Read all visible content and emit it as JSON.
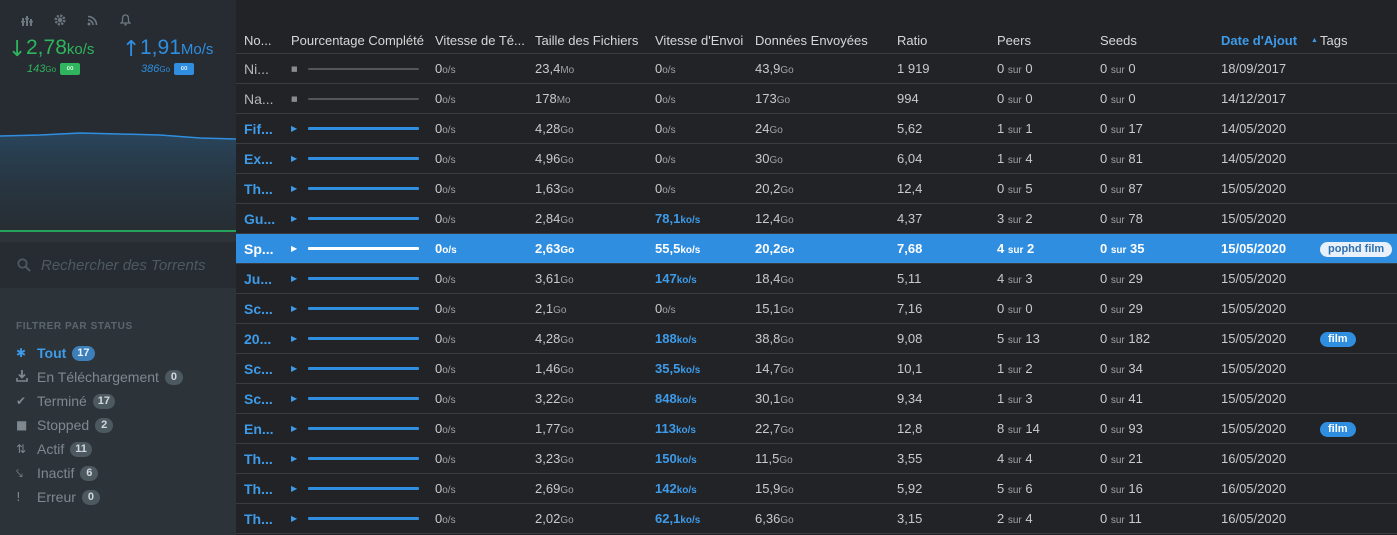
{
  "sidebar": {
    "icons": [
      "equalizer-icon",
      "gear-icon",
      "rss-icon",
      "bell-icon"
    ],
    "download": {
      "value": "2,78",
      "unit": "ko/s",
      "total": "143",
      "total_unit": "Go",
      "limit": "∞"
    },
    "upload": {
      "value": "1,91",
      "unit": "Mo/s",
      "total": "386",
      "total_unit": "Go",
      "limit": "∞"
    },
    "search_placeholder": "Rechercher des Torrents",
    "filter_title": "FILTRER PAR STATUS",
    "filters": [
      {
        "label": "Tout",
        "count": "17",
        "icon": "asterisk-icon",
        "active": true
      },
      {
        "label": "En Téléchargement",
        "count": "0",
        "icon": "download-icon"
      },
      {
        "label": "Terminé",
        "count": "17",
        "icon": "check-icon"
      },
      {
        "label": "Stopped",
        "count": "2",
        "icon": "stop-icon"
      },
      {
        "label": "Actif",
        "count": "11",
        "icon": "transfer-icon"
      },
      {
        "label": "Inactif",
        "count": "6",
        "icon": "inactive-icon"
      },
      {
        "label": "Erreur",
        "count": "0",
        "icon": "exclamation-icon"
      }
    ],
    "colors": {
      "download": "#2fb55d",
      "upload": "#2f8ee0"
    }
  },
  "table": {
    "headers": [
      "No...",
      "Pourcentage Complété",
      "Vitesse de Té...",
      "Taille des Fichiers",
      "Vitesse d'Envoi",
      "Données Envoyées",
      "Ratio",
      "Peers",
      "Seeds",
      "Date d'Ajout",
      "Tags"
    ],
    "sort_column": "Date d'Ajout",
    "sort_direction": "ascending",
    "peer_sep": "sur",
    "rows": [
      {
        "name": "Ni...",
        "status": "stopped",
        "dl": "0",
        "dl_u": "o/s",
        "size": "23,4",
        "size_u": "Mo",
        "up": "0",
        "up_u": "o/s",
        "sent": "43,9",
        "sent_u": "Go",
        "ratio": "1 919",
        "peers_a": "0",
        "peers_b": "0",
        "seeds_a": "0",
        "seeds_b": "0",
        "date": "18/09/2017",
        "tag": ""
      },
      {
        "name": "Na...",
        "status": "stopped",
        "dl": "0",
        "dl_u": "o/s",
        "size": "178",
        "size_u": "Mo",
        "up": "0",
        "up_u": "o/s",
        "sent": "173",
        "sent_u": "Go",
        "ratio": "994",
        "peers_a": "0",
        "peers_b": "0",
        "seeds_a": "0",
        "seeds_b": "0",
        "date": "14/12/2017",
        "tag": ""
      },
      {
        "name": "Fif...",
        "status": "seeding",
        "dl": "0",
        "dl_u": "o/s",
        "size": "4,28",
        "size_u": "Go",
        "up": "0",
        "up_u": "o/s",
        "sent": "24",
        "sent_u": "Go",
        "ratio": "5,62",
        "peers_a": "1",
        "peers_b": "1",
        "seeds_a": "0",
        "seeds_b": "17",
        "date": "14/05/2020",
        "tag": ""
      },
      {
        "name": "Ex...",
        "status": "seeding",
        "dl": "0",
        "dl_u": "o/s",
        "size": "4,96",
        "size_u": "Go",
        "up": "0",
        "up_u": "o/s",
        "sent": "30",
        "sent_u": "Go",
        "ratio": "6,04",
        "peers_a": "1",
        "peers_b": "4",
        "seeds_a": "0",
        "seeds_b": "81",
        "date": "14/05/2020",
        "tag": ""
      },
      {
        "name": "Th...",
        "status": "seeding",
        "dl": "0",
        "dl_u": "o/s",
        "size": "1,63",
        "size_u": "Go",
        "up": "0",
        "up_u": "o/s",
        "sent": "20,2",
        "sent_u": "Go",
        "ratio": "12,4",
        "peers_a": "0",
        "peers_b": "5",
        "seeds_a": "0",
        "seeds_b": "87",
        "date": "15/05/2020",
        "tag": ""
      },
      {
        "name": "Gu...",
        "status": "seeding",
        "dl": "0",
        "dl_u": "o/s",
        "size": "2,84",
        "size_u": "Go",
        "up": "78,1",
        "up_u": "ko/s",
        "up_active": true,
        "sent": "12,4",
        "sent_u": "Go",
        "ratio": "4,37",
        "peers_a": "3",
        "peers_b": "2",
        "seeds_a": "0",
        "seeds_b": "78",
        "date": "15/05/2020",
        "tag": ""
      },
      {
        "name": "Sp...",
        "status": "selected",
        "dl": "0",
        "dl_u": "o/s",
        "size": "2,63",
        "size_u": "Go",
        "up": "55,5",
        "up_u": "ko/s",
        "up_active": true,
        "sent": "20,2",
        "sent_u": "Go",
        "ratio": "7,68",
        "peers_a": "4",
        "peers_b": "2",
        "seeds_a": "0",
        "seeds_b": "35",
        "date": "15/05/2020",
        "tag": "pophd film"
      },
      {
        "name": "Ju...",
        "status": "seeding",
        "dl": "0",
        "dl_u": "o/s",
        "size": "3,61",
        "size_u": "Go",
        "up": "147",
        "up_u": "ko/s",
        "up_active": true,
        "sent": "18,4",
        "sent_u": "Go",
        "ratio": "5,11",
        "peers_a": "4",
        "peers_b": "3",
        "seeds_a": "0",
        "seeds_b": "29",
        "date": "15/05/2020",
        "tag": ""
      },
      {
        "name": "Sc...",
        "status": "seeding",
        "dl": "0",
        "dl_u": "o/s",
        "size": "2,1",
        "size_u": "Go",
        "up": "0",
        "up_u": "o/s",
        "sent": "15,1",
        "sent_u": "Go",
        "ratio": "7,16",
        "peers_a": "0",
        "peers_b": "0",
        "seeds_a": "0",
        "seeds_b": "29",
        "date": "15/05/2020",
        "tag": ""
      },
      {
        "name": "20...",
        "status": "seeding",
        "dl": "0",
        "dl_u": "o/s",
        "size": "4,28",
        "size_u": "Go",
        "up": "188",
        "up_u": "ko/s",
        "up_active": true,
        "sent": "38,8",
        "sent_u": "Go",
        "ratio": "9,08",
        "peers_a": "5",
        "peers_b": "13",
        "seeds_a": "0",
        "seeds_b": "182",
        "date": "15/05/2020",
        "tag": "film"
      },
      {
        "name": "Sc...",
        "status": "seeding",
        "dl": "0",
        "dl_u": "o/s",
        "size": "1,46",
        "size_u": "Go",
        "up": "35,5",
        "up_u": "ko/s",
        "up_active": true,
        "sent": "14,7",
        "sent_u": "Go",
        "ratio": "10,1",
        "peers_a": "1",
        "peers_b": "2",
        "seeds_a": "0",
        "seeds_b": "34",
        "date": "15/05/2020",
        "tag": ""
      },
      {
        "name": "Sc...",
        "status": "seeding",
        "dl": "0",
        "dl_u": "o/s",
        "size": "3,22",
        "size_u": "Go",
        "up": "848",
        "up_u": "ko/s",
        "up_active": true,
        "sent": "30,1",
        "sent_u": "Go",
        "ratio": "9,34",
        "peers_a": "1",
        "peers_b": "3",
        "seeds_a": "0",
        "seeds_b": "41",
        "date": "15/05/2020",
        "tag": ""
      },
      {
        "name": "En...",
        "status": "seeding",
        "dl": "0",
        "dl_u": "o/s",
        "size": "1,77",
        "size_u": "Go",
        "up": "113",
        "up_u": "ko/s",
        "up_active": true,
        "sent": "22,7",
        "sent_u": "Go",
        "ratio": "12,8",
        "peers_a": "8",
        "peers_b": "14",
        "seeds_a": "0",
        "seeds_b": "93",
        "date": "15/05/2020",
        "tag": "film"
      },
      {
        "name": "Th...",
        "status": "seeding",
        "dl": "0",
        "dl_u": "o/s",
        "size": "3,23",
        "size_u": "Go",
        "up": "150",
        "up_u": "ko/s",
        "up_active": true,
        "sent": "11,5",
        "sent_u": "Go",
        "ratio": "3,55",
        "peers_a": "4",
        "peers_b": "4",
        "seeds_a": "0",
        "seeds_b": "21",
        "date": "16/05/2020",
        "tag": ""
      },
      {
        "name": "Th...",
        "status": "seeding",
        "dl": "0",
        "dl_u": "o/s",
        "size": "2,69",
        "size_u": "Go",
        "up": "142",
        "up_u": "ko/s",
        "up_active": true,
        "sent": "15,9",
        "sent_u": "Go",
        "ratio": "5,92",
        "peers_a": "5",
        "peers_b": "6",
        "seeds_a": "0",
        "seeds_b": "16",
        "date": "16/05/2020",
        "tag": ""
      },
      {
        "name": "Th...",
        "status": "seeding",
        "dl": "0",
        "dl_u": "o/s",
        "size": "2,02",
        "size_u": "Go",
        "up": "62,1",
        "up_u": "ko/s",
        "up_active": true,
        "sent": "6,36",
        "sent_u": "Go",
        "ratio": "3,15",
        "peers_a": "2",
        "peers_b": "4",
        "seeds_a": "0",
        "seeds_b": "11",
        "date": "16/05/2020",
        "tag": ""
      }
    ]
  }
}
